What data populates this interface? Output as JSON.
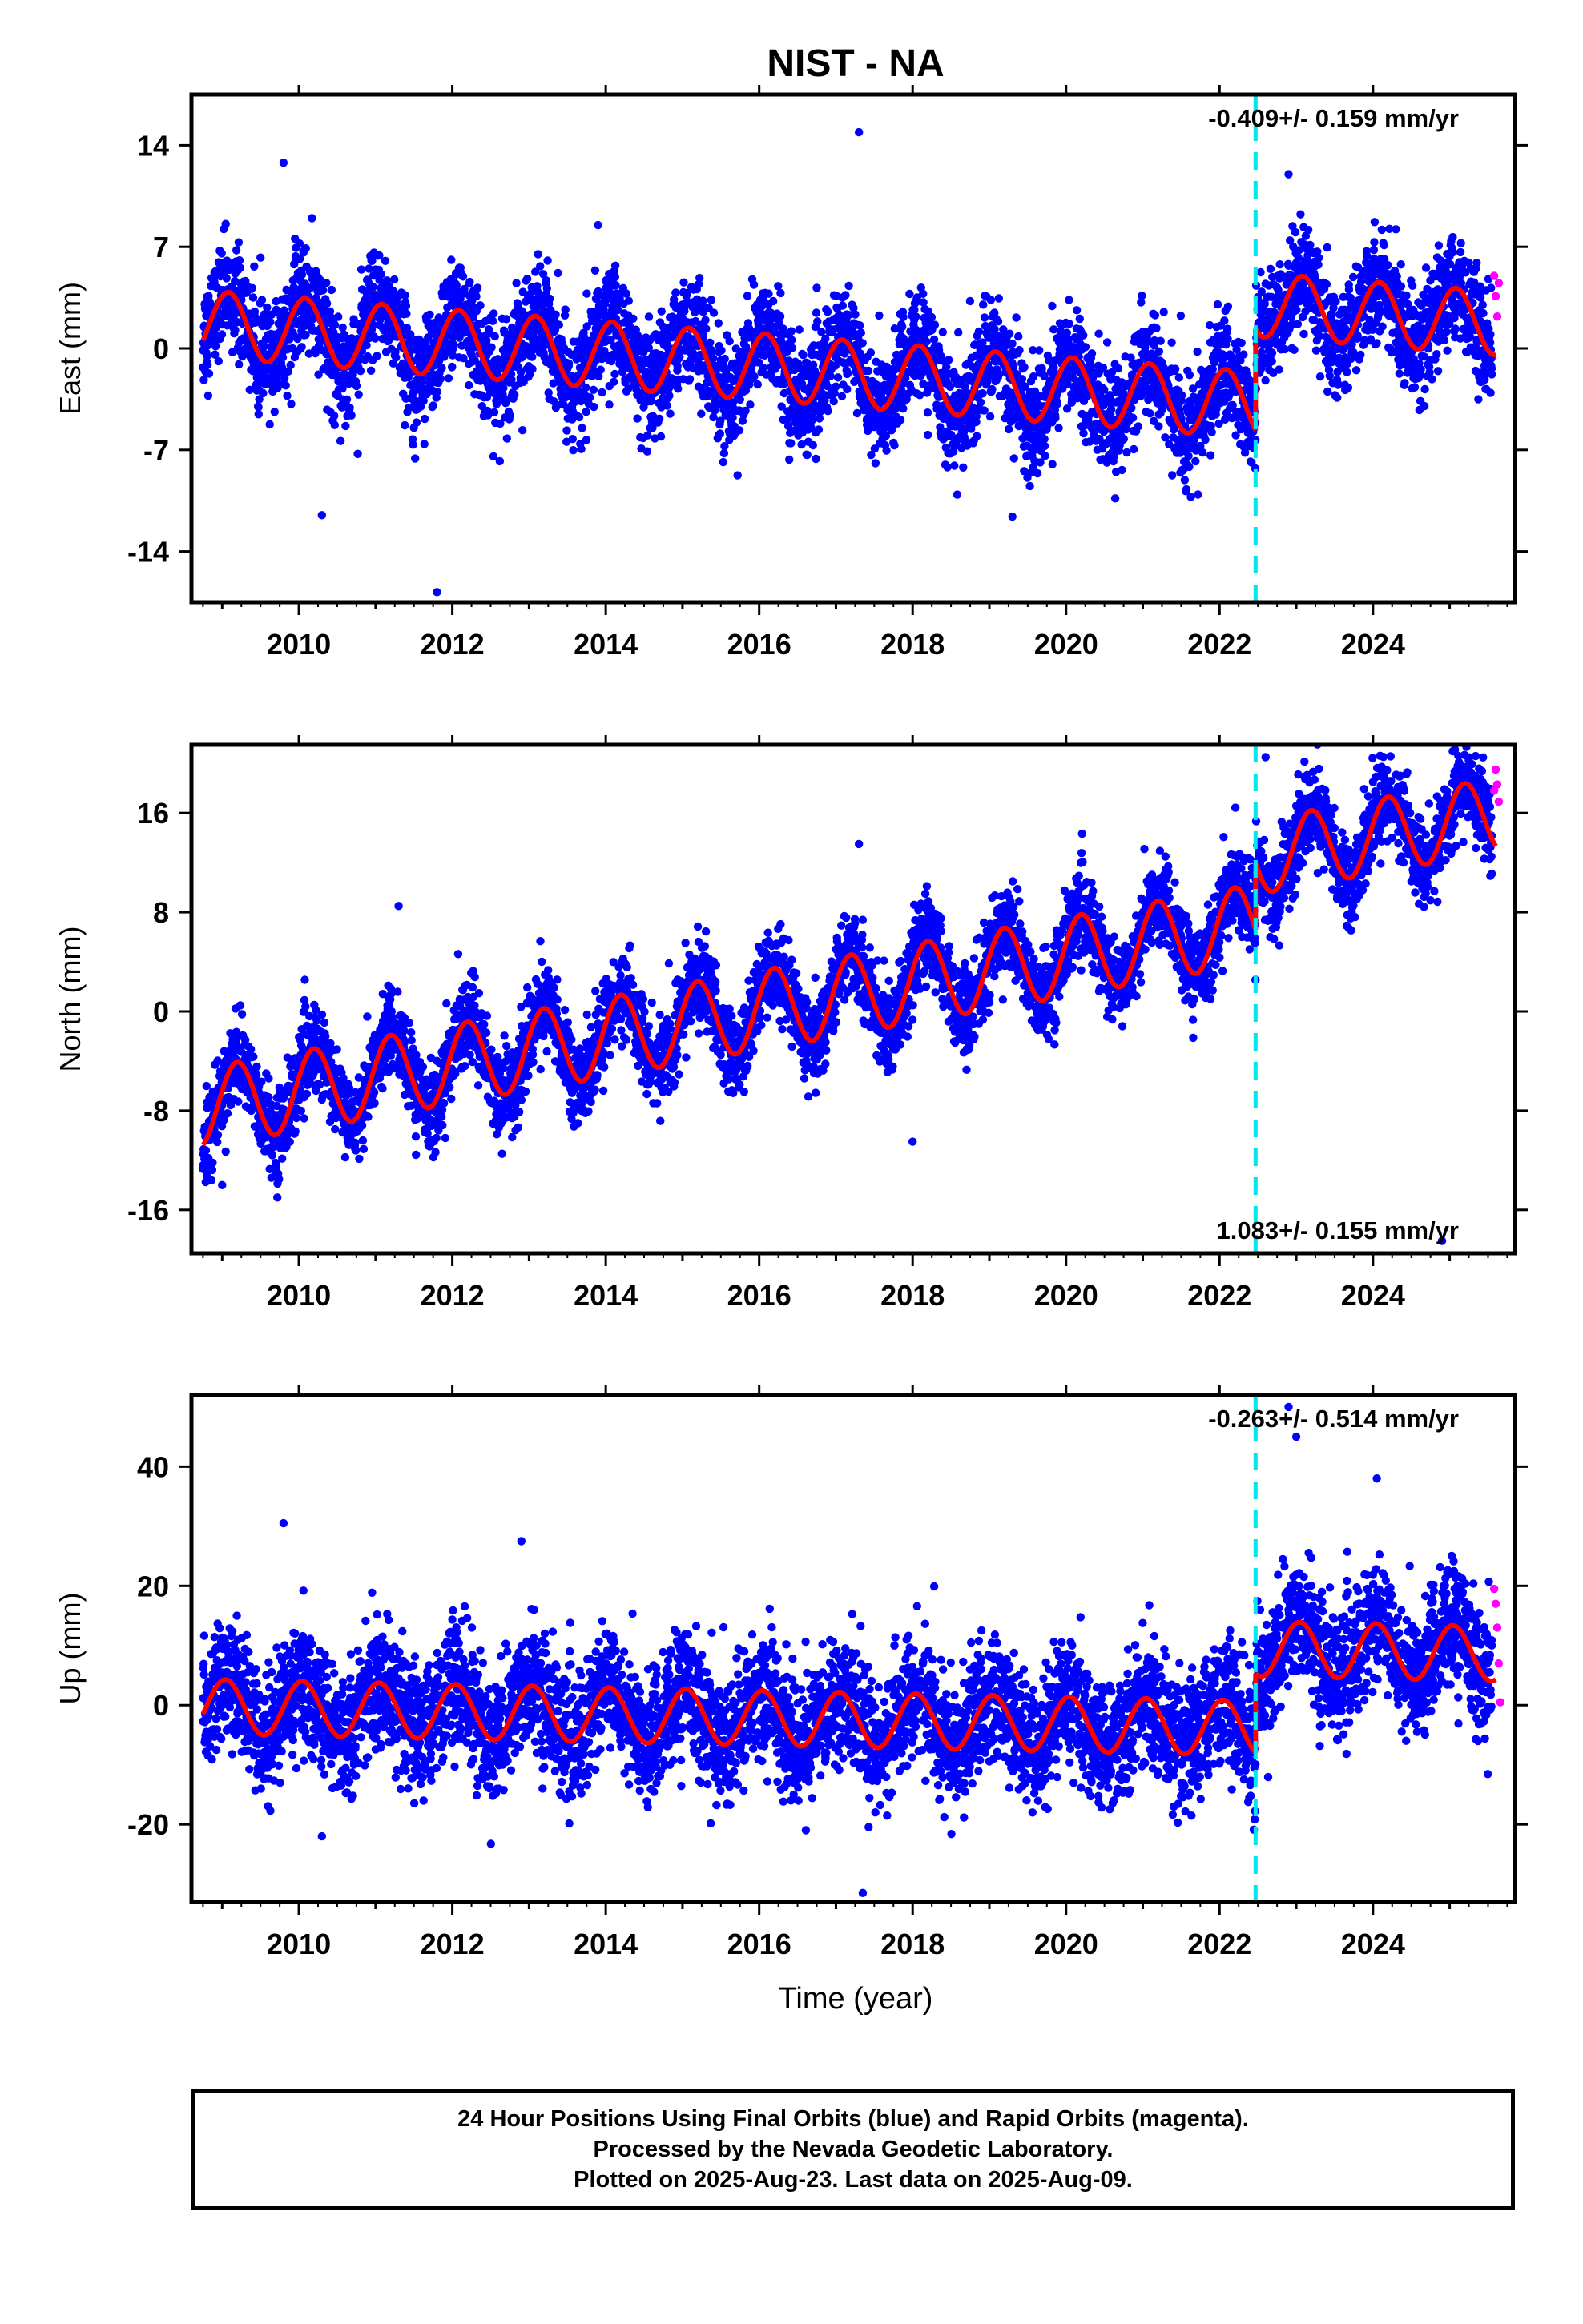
{
  "title": "NIST - NA",
  "colors": {
    "final_points": "#0000ff",
    "rapid_points": "#ff00ff",
    "model_line": "#ff0000",
    "event_line": "#00e5ee",
    "axes": "#000000"
  },
  "xlabel": "Time (year)",
  "x_tick_labels": [
    "2010",
    "2012",
    "2014",
    "2016",
    "2018",
    "2020",
    "2022",
    "2024"
  ],
  "event_year": 2022.47,
  "chart_data": [
    {
      "type": "scatter",
      "id": "east",
      "ylabel": "East (mm)",
      "rate_text": "-0.409+/- 0.159 mm/yr",
      "rate_position": "top-right",
      "xlim": [
        2008.6,
        2025.85
      ],
      "ylim": [
        -17.5,
        17.5
      ],
      "yticks": [
        14,
        7,
        0,
        -7,
        -14
      ],
      "ytick_labels": [
        "14",
        "7",
        "0",
        "-7",
        "-14"
      ],
      "grid": false,
      "series": [
        {
          "role": "model",
          "segments": [
            {
              "x0": 2008.75,
              "x1": 2022.47,
              "offset_at_2009": 1.6,
              "rate": -0.409,
              "amp": 2.3,
              "phase": 1.05
            },
            {
              "x0": 2022.47,
              "x1": 2025.6,
              "offset_at_2023": 2.8,
              "rate": -0.409,
              "amp": 2.2,
              "phase": 1.05
            }
          ]
        },
        {
          "role": "final",
          "scatter_sd": 1.8,
          "outliers": [
            [
              2009.8,
              12.8
            ],
            [
              2010.3,
              -11.5
            ],
            [
              2011.8,
              -16.8
            ],
            [
              2013.9,
              8.5
            ],
            [
              2017.3,
              14.9
            ],
            [
              2019.3,
              -11.6
            ],
            [
              2022.9,
              12.0
            ]
          ]
        },
        {
          "role": "rapid",
          "x": [
            2025.58,
            2025.6,
            2025.62,
            2025.64
          ],
          "y": [
            5.0,
            3.6,
            2.2,
            4.5
          ]
        }
      ]
    },
    {
      "type": "scatter",
      "id": "north",
      "ylabel": "North (mm)",
      "rate_text": "1.083+/- 0.155 mm/yr",
      "rate_position": "bottom-right",
      "xlim": [
        2008.6,
        2025.85
      ],
      "ylim": [
        -19.5,
        21.5
      ],
      "yticks": [
        16,
        8,
        0,
        -8,
        -16
      ],
      "ytick_labels": [
        "16",
        "8",
        "0",
        "-8",
        "-16"
      ],
      "grid": false,
      "series": [
        {
          "role": "model",
          "segments": [
            {
              "x0": 2008.75,
              "x1": 2022.47,
              "offset_at_2009": -7.5,
              "rate": 1.083,
              "amp": 3.2,
              "phase": 0.35
            },
            {
              "x0": 2022.47,
              "x1": 2025.6,
              "offset_at_2023": 13.0,
              "rate": 1.083,
              "amp": 3.0,
              "phase": 0.35
            }
          ]
        },
        {
          "role": "final",
          "scatter_sd": 1.7,
          "outliers": [
            [
              2009.0,
              -14.0
            ],
            [
              2011.3,
              8.5
            ],
            [
              2017.3,
              13.5
            ],
            [
              2018.0,
              -10.5
            ],
            [
              2022.6,
              20.5
            ],
            [
              2024.9,
              -18.5
            ]
          ]
        },
        {
          "role": "rapid",
          "x": [
            2025.58,
            2025.6,
            2025.62,
            2025.64
          ],
          "y": [
            17.8,
            19.5,
            18.3,
            16.9
          ]
        }
      ]
    },
    {
      "type": "scatter",
      "id": "up",
      "ylabel": "Up (mm)",
      "rate_text": "-0.263+/- 0.514 mm/yr",
      "rate_position": "top-right",
      "xlim": [
        2008.6,
        2025.85
      ],
      "ylim": [
        -33,
        52
      ],
      "yticks": [
        40,
        20,
        0,
        -20
      ],
      "ytick_labels": [
        "40",
        "20",
        "0",
        "-20"
      ],
      "grid": false,
      "series": [
        {
          "role": "model",
          "segments": [
            {
              "x0": 2008.75,
              "x1": 2022.47,
              "offset_at_2009": -0.3,
              "rate": -0.263,
              "amp": 4.6,
              "phase": 1.3
            },
            {
              "x0": 2022.47,
              "x1": 2025.6,
              "offset_at_2023": 9.3,
              "rate": -0.263,
              "amp": 4.6,
              "phase": 1.3
            }
          ]
        },
        {
          "role": "final",
          "scatter_sd": 5.2,
          "outliers": [
            [
              2009.8,
              30.5
            ],
            [
              2010.3,
              -22.0
            ],
            [
              2012.9,
              27.5
            ],
            [
              2017.35,
              -31.5
            ],
            [
              2022.9,
              50.0
            ],
            [
              2023.0,
              45.0
            ],
            [
              2024.05,
              38.0
            ]
          ]
        },
        {
          "role": "rapid",
          "x": [
            2025.58,
            2025.6,
            2025.62,
            2025.64,
            2025.66
          ],
          "y": [
            19.5,
            17.0,
            13.0,
            7.0,
            0.5
          ]
        }
      ]
    }
  ],
  "caption": {
    "line1": "24 Hour Positions Using Final Orbits (blue) and Rapid Orbits (magenta).",
    "line2": "Processed by the Nevada Geodetic Laboratory.",
    "line3": "Plotted on 2025-Aug-23. Last data on 2025-Aug-09."
  }
}
